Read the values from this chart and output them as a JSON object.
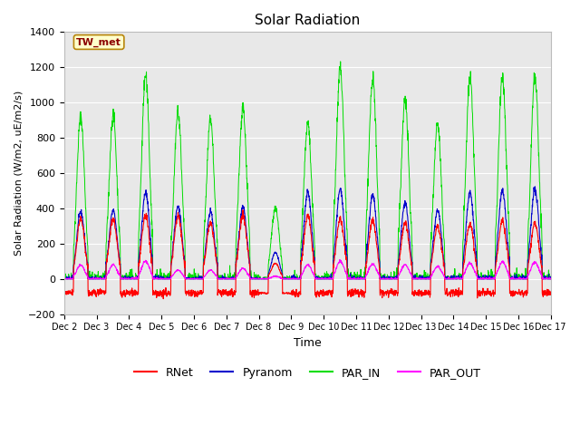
{
  "title": "Solar Radiation",
  "ylabel": "Solar Radiation (W/m2, uE/m2/s)",
  "xlabel": "Time",
  "annotation": "TW_met",
  "ylim": [
    -200,
    1400
  ],
  "yticks": [
    -200,
    0,
    200,
    400,
    600,
    800,
    1000,
    1200,
    1400
  ],
  "xtick_labels": [
    "Dec 2",
    "Dec 3",
    "Dec 4",
    "Dec 5",
    "Dec 6",
    "Dec 7",
    "Dec 8",
    "Dec 9",
    "Dec 10",
    "Dec 11",
    "Dec 12",
    "Dec 13",
    "Dec 14",
    "Dec 15",
    "Dec 16",
    "Dec 17"
  ],
  "colors": {
    "RNet": "#ff0000",
    "Pyranom": "#0000cc",
    "PAR_IN": "#00dd00",
    "PAR_OUT": "#ff00ff"
  },
  "background_color": "#e8e8e8",
  "n_days": 15,
  "peaks_PAR_IN": [
    920,
    930,
    1150,
    950,
    910,
    970,
    400,
    880,
    1200,
    1140,
    1020,
    880,
    1140,
    1150,
    1150
  ],
  "peaks_Pyranom": [
    380,
    390,
    490,
    410,
    380,
    410,
    150,
    490,
    510,
    480,
    430,
    390,
    490,
    500,
    510
  ],
  "peaks_RNet": [
    340,
    340,
    360,
    360,
    320,
    360,
    90,
    360,
    340,
    330,
    320,
    300,
    310,
    330,
    320
  ],
  "peaks_PAR_OUT": [
    80,
    80,
    100,
    50,
    50,
    60,
    15,
    80,
    100,
    85,
    80,
    70,
    90,
    95,
    95
  ],
  "night_RNet": -80,
  "day_start": 0.29,
  "day_end": 0.73
}
